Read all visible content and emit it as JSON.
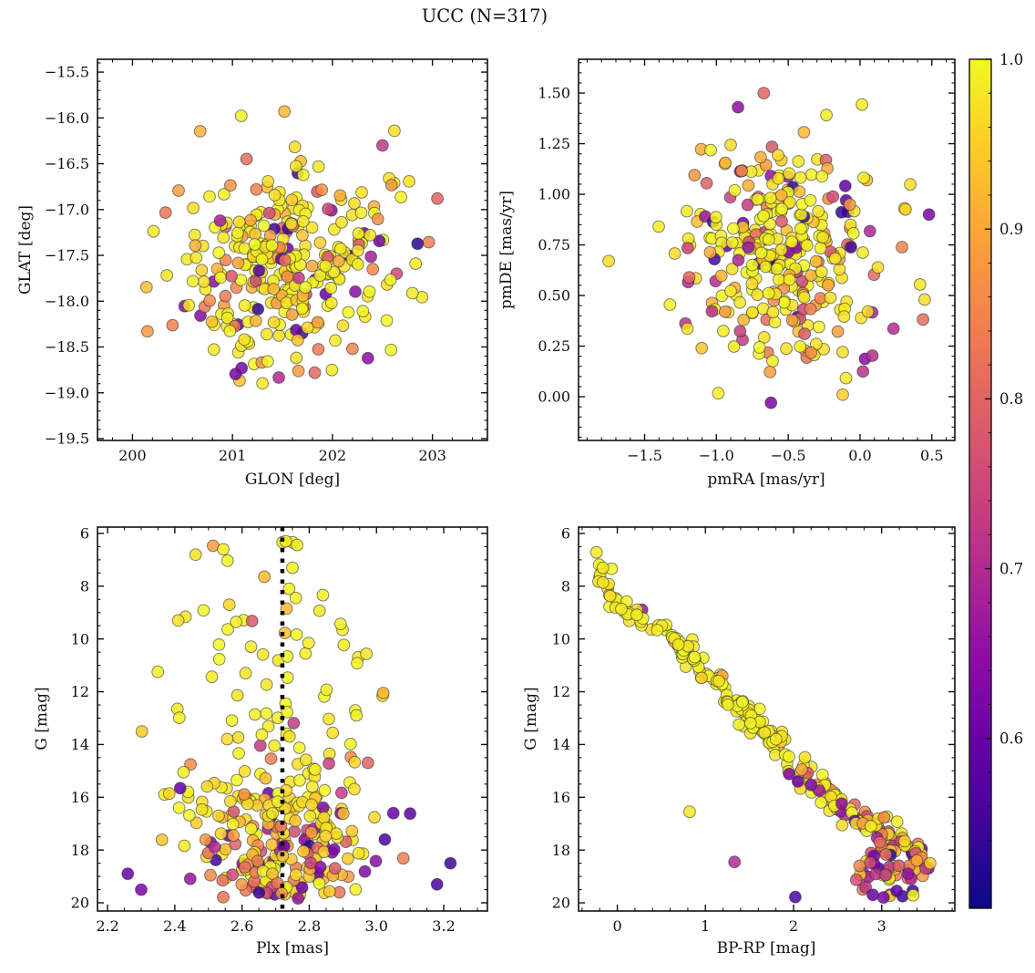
{
  "title": "UCC (N=317)",
  "chart_data": {
    "type": "scatter",
    "figure_title": "UCC (N=317)",
    "n_stars": 317,
    "seed": 1317,
    "style": {
      "marker_radius": 6.4,
      "marker_alpha": 0.85,
      "edge_color": "#333333",
      "spine_color": "#111111",
      "background": "#ffffff"
    },
    "colorbar": {
      "vmin": 0.5,
      "vmax": 1.0,
      "tick_values": [
        1.0,
        0.9,
        0.8,
        0.7,
        0.6
      ],
      "tick_labels": [
        "1.0",
        "0.9",
        "0.8",
        "0.7",
        "0.6"
      ],
      "minor_step": 0.02,
      "colormap": "plasma",
      "cmap_stops": [
        [
          0.0,
          "#0d0887"
        ],
        [
          0.1,
          "#41049d"
        ],
        [
          0.2,
          "#6a00a8"
        ],
        [
          0.3,
          "#8f0da4"
        ],
        [
          0.4,
          "#b12a90"
        ],
        [
          0.5,
          "#cc4778"
        ],
        [
          0.6,
          "#e16462"
        ],
        [
          0.7,
          "#f2844b"
        ],
        [
          0.8,
          "#fca636"
        ],
        [
          0.9,
          "#fcce25"
        ],
        [
          1.0,
          "#f0f921"
        ]
      ]
    },
    "color_mixes": {
      "field": [
        [
          0.6,
          0.965,
          1.0
        ],
        [
          0.17,
          0.86,
          0.965
        ],
        [
          0.12,
          0.74,
          0.86
        ],
        [
          0.11,
          0.52,
          0.74
        ]
      ],
      "bright": [
        [
          0.88,
          0.97,
          1.0
        ],
        [
          0.09,
          0.88,
          0.97
        ],
        [
          0.03,
          0.6,
          0.8
        ]
      ],
      "mid": [
        [
          0.72,
          0.95,
          1.0
        ],
        [
          0.16,
          0.84,
          0.95
        ],
        [
          0.12,
          0.55,
          0.8
        ]
      ],
      "faint": [
        [
          0.42,
          0.93,
          1.0
        ],
        [
          0.28,
          0.78,
          0.93
        ],
        [
          0.3,
          0.52,
          0.76
        ]
      ],
      "clump": [
        [
          0.25,
          0.9,
          1.0
        ],
        [
          0.35,
          0.75,
          0.9
        ],
        [
          0.4,
          0.52,
          0.72
        ]
      ]
    },
    "panels": [
      {
        "id": "glon-glat",
        "xlabel": "GLON [deg]",
        "ylabel": "GLAT [deg]",
        "xlim": [
          199.65,
          203.55
        ],
        "ylim_top_bottom": [
          -15.36,
          -19.52
        ],
        "xticks": {
          "values": [
            200,
            201,
            202,
            203
          ],
          "labels": [
            "200",
            "201",
            "202",
            "203"
          ],
          "minor_step": 0.2
        },
        "yticks": {
          "values": [
            -15.5,
            -16.0,
            -16.5,
            -17.0,
            -17.5,
            -18.0,
            -18.5,
            -19.0,
            -19.5
          ],
          "labels": [
            "−15.5",
            "−16.0",
            "−16.5",
            "−17.0",
            "−17.5",
            "−18.0",
            "−18.5",
            "−19.0",
            "−19.5"
          ],
          "minor_step": 0.1
        },
        "clusters": [
          {
            "type": "gauss",
            "n": 312,
            "x": {
              "mean": 201.55,
              "sd": 0.55,
              "min": 200.1,
              "max": 203.1
            },
            "y": {
              "mean": -17.62,
              "sd": 0.58,
              "min": -19.32,
              "max": -15.92
            },
            "color_mix": "field"
          }
        ],
        "points": [
          [
            200.15,
            -18.33,
            0.88
          ],
          [
            203.05,
            -16.88,
            0.8
          ],
          [
            201.52,
            -15.93,
            0.92
          ],
          [
            202.62,
            -16.14,
            0.97
          ],
          [
            202.5,
            -16.3,
            0.72
          ]
        ]
      },
      {
        "id": "pm",
        "xlabel": "pmRA [mas/yr]",
        "ylabel": "pmDE [mas/yr]",
        "xlim": [
          -1.96,
          0.66
        ],
        "ylim_top_bottom": [
          1.667,
          -0.216
        ],
        "xticks": {
          "values": [
            -1.5,
            -1.0,
            -0.5,
            0.0,
            0.5
          ],
          "labels": [
            "−1.5",
            "−1.0",
            "−0.5",
            "0.0",
            "0.5"
          ],
          "minor_step": 0.1
        },
        "yticks": {
          "values": [
            1.5,
            1.25,
            1.0,
            0.75,
            0.5,
            0.25,
            0.0
          ],
          "labels": [
            "1.50",
            "1.25",
            "1.00",
            "0.75",
            "0.50",
            "0.25",
            "0.00"
          ],
          "minor_step": 0.05
        },
        "clusters": [
          {
            "type": "gauss",
            "n": 310,
            "x": {
              "mean": -0.55,
              "sd": 0.36,
              "min": -1.52,
              "max": 0.5
            },
            "y": {
              "mean": 0.71,
              "sd": 0.26,
              "min": -0.02,
              "max": 1.5
            },
            "color_mix": "field"
          }
        ],
        "points": [
          [
            -1.75,
            0.67,
            0.97
          ],
          [
            0.48,
            0.9,
            0.62
          ],
          [
            0.45,
            0.48,
            0.97
          ],
          [
            -0.62,
            -0.03,
            0.62
          ],
          [
            -0.12,
            0.01,
            0.95
          ],
          [
            -0.67,
            1.5,
            0.8
          ],
          [
            -0.85,
            1.43,
            0.65
          ]
        ]
      },
      {
        "id": "plx-g",
        "xlabel": "Plx [mas]",
        "ylabel": "G [mag]",
        "xlim": [
          2.17,
          3.33
        ],
        "ylim_top_bottom": [
          5.76,
          20.31
        ],
        "xticks": {
          "values": [
            2.2,
            2.4,
            2.6,
            2.8,
            3.0,
            3.2
          ],
          "labels": [
            "2.2",
            "2.4",
            "2.6",
            "2.8",
            "3.0",
            "3.2"
          ],
          "minor_step": 0.05
        },
        "yticks": {
          "values": [
            6,
            8,
            10,
            12,
            14,
            16,
            18,
            20
          ],
          "labels": [
            "6",
            "8",
            "10",
            "12",
            "14",
            "16",
            "18",
            "20"
          ],
          "minor_step": 0.5
        },
        "vline": {
          "x": 2.72,
          "style": "dotted",
          "color": "#000000",
          "width": 4.5
        },
        "clusters": [
          {
            "type": "gauss",
            "n": 305,
            "x": {
              "mean": 2.725,
              "sd": 0.155,
              "min": 2.22,
              "max": 3.26
            },
            "y_mix": [
              [
                0.03,
                6.3,
                9.0
              ],
              [
                0.07,
                9.0,
                12.0
              ],
              [
                0.1,
                12.0,
                14.5
              ],
              [
                0.17,
                14.5,
                16.2
              ],
              [
                0.39,
                16.2,
                18.4
              ],
              [
                0.24,
                18.4,
                19.85
              ]
            ],
            "color_rules": [
              [
                13.5,
                "bright"
              ],
              [
                16.8,
                "mid"
              ],
              [
                99,
                "faint"
              ]
            ]
          }
        ],
        "points": [
          [
            2.73,
            6.3,
            0.99
          ],
          [
            2.75,
            7.3,
            0.99
          ],
          [
            2.74,
            8.1,
            0.99
          ],
          [
            2.41,
            9.3,
            0.97
          ],
          [
            2.63,
            9.32,
            0.78
          ],
          [
            2.76,
            8.45,
            0.99
          ],
          [
            3.22,
            18.5,
            0.55
          ],
          [
            3.1,
            16.62,
            0.58
          ],
          [
            3.05,
            16.6,
            0.6
          ],
          [
            2.26,
            18.9,
            0.6
          ],
          [
            2.3,
            19.5,
            0.62
          ],
          [
            3.18,
            19.3,
            0.56
          ]
        ]
      },
      {
        "id": "cmd",
        "xlabel": "BP-RP [mag]",
        "ylabel": "G [mag]",
        "xlim": [
          -0.44,
          3.83
        ],
        "ylim_top_bottom": [
          5.76,
          20.31
        ],
        "xticks": {
          "values": [
            0,
            1,
            2,
            3
          ],
          "labels": [
            "0",
            "1",
            "2",
            "3"
          ],
          "minor_step": 0.2
        },
        "yticks": {
          "values": [
            6,
            8,
            10,
            12,
            14,
            16,
            18,
            20
          ],
          "labels": [
            "6",
            "8",
            "10",
            "12",
            "14",
            "16",
            "18",
            "20"
          ],
          "minor_step": 0.5
        },
        "clusters": [
          {
            "type": "curve",
            "n": 268,
            "t_pow": 0.62,
            "x_jitter": [
              0.025,
              0.1
            ],
            "y_jitter": [
              0.09,
              0.22
            ],
            "color_rules": [
              [
                15,
                "bright"
              ],
              [
                17.5,
                "mid"
              ],
              [
                99,
                "faint"
              ]
            ],
            "curve": [
              [
                -0.3,
                6.35
              ],
              [
                -0.24,
                6.9
              ],
              [
                -0.2,
                7.35
              ],
              [
                -0.15,
                7.8
              ],
              [
                -0.1,
                8.2
              ],
              [
                -0.02,
                8.55
              ],
              [
                0.08,
                8.85
              ],
              [
                0.2,
                9.15
              ],
              [
                0.35,
                9.45
              ],
              [
                0.5,
                9.72
              ],
              [
                0.65,
                10.05
              ],
              [
                0.8,
                10.4
              ],
              [
                0.92,
                10.85
              ],
              [
                1.05,
                11.35
              ],
              [
                1.18,
                11.85
              ],
              [
                1.32,
                12.35
              ],
              [
                1.47,
                12.85
              ],
              [
                1.62,
                13.35
              ],
              [
                1.78,
                13.85
              ],
              [
                1.95,
                14.45
              ],
              [
                2.12,
                15.0
              ],
              [
                2.3,
                15.55
              ],
              [
                2.5,
                16.1
              ],
              [
                2.72,
                16.65
              ],
              [
                2.95,
                17.2
              ],
              [
                3.15,
                17.7
              ],
              [
                3.32,
                18.15
              ],
              [
                3.45,
                18.5
              ]
            ]
          },
          {
            "type": "gauss",
            "n": 36,
            "x": {
              "mean": 3.05,
              "sd": 0.17,
              "min": 2.62,
              "max": 3.48
            },
            "y": {
              "mean": 18.85,
              "sd": 0.5,
              "min": 17.7,
              "max": 19.9
            },
            "color_mix": "clump"
          }
        ],
        "points": [
          [
            1.33,
            18.45,
            0.7
          ],
          [
            2.02,
            19.78,
            0.56
          ],
          [
            0.82,
            16.55,
            0.98
          ],
          [
            2.05,
            15.4,
            0.6
          ],
          [
            1.95,
            15.12,
            0.62
          ],
          [
            2.9,
            19.7,
            0.6
          ],
          [
            3.02,
            19.8,
            0.62
          ],
          [
            3.17,
            19.55,
            0.58
          ],
          [
            3.3,
            18.9,
            0.66
          ],
          [
            2.75,
            18.6,
            0.85
          ],
          [
            3.4,
            18.4,
            0.9
          ],
          [
            3.5,
            18.7,
            0.75
          ],
          [
            3.55,
            18.5,
            0.95
          ]
        ]
      }
    ]
  }
}
